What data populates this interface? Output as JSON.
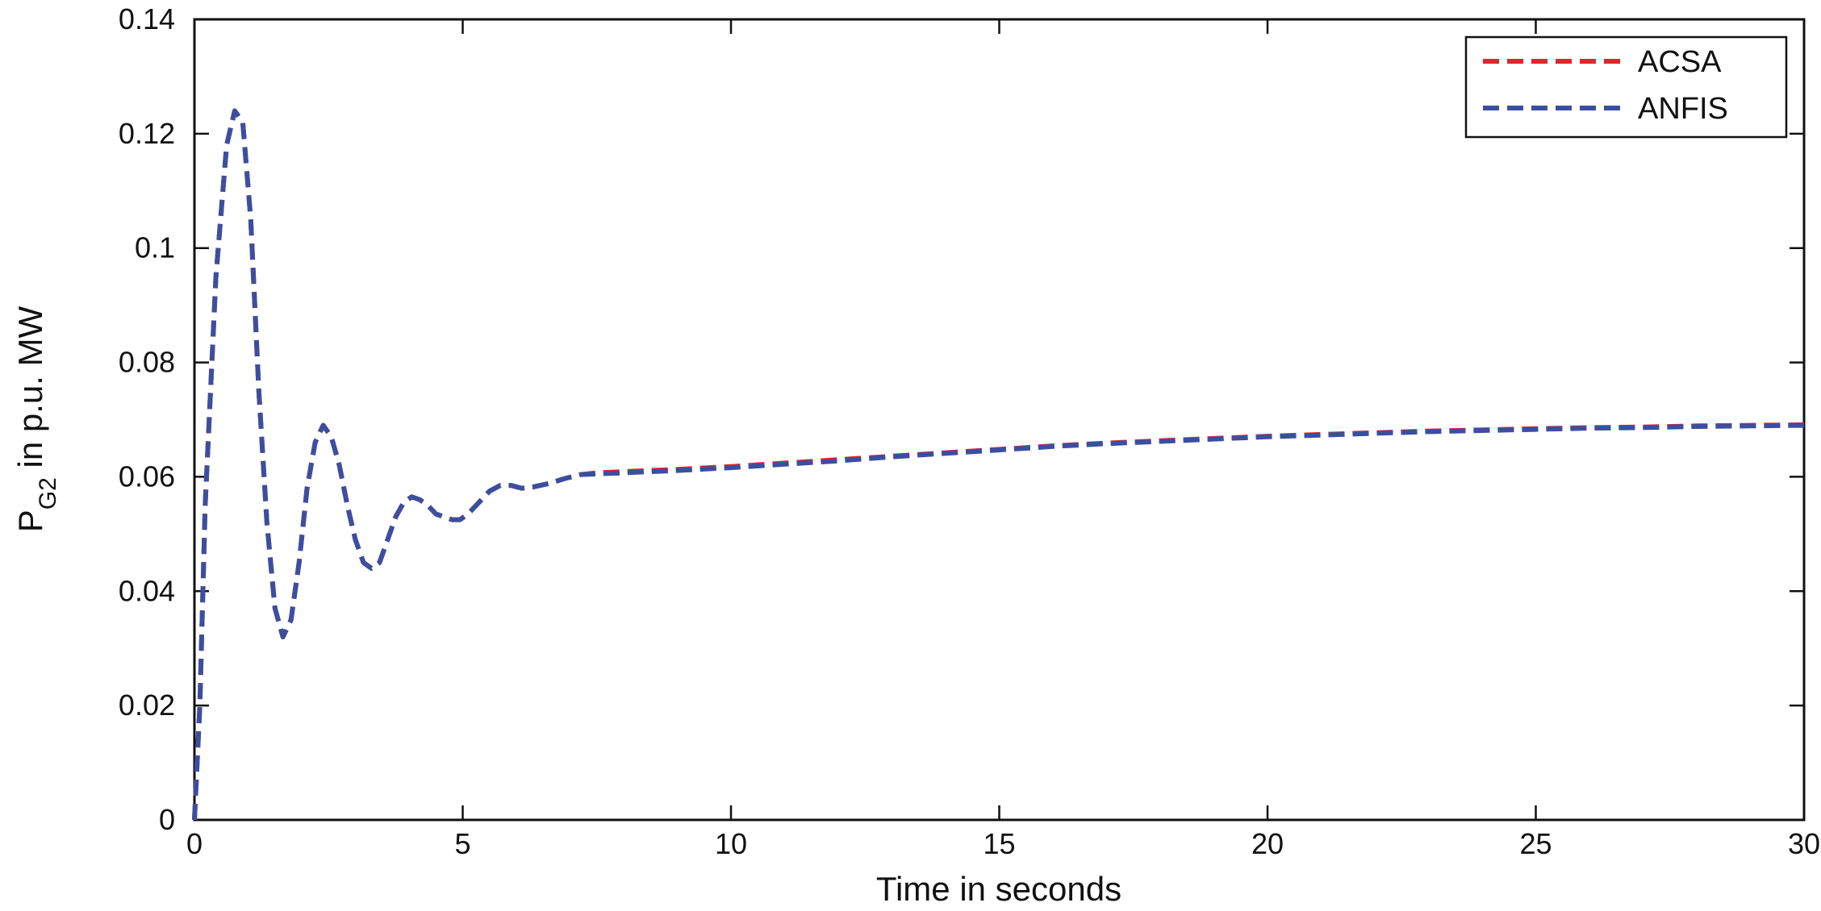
{
  "chart_data": {
    "type": "line",
    "title": "",
    "xlabel": "Time in seconds",
    "ylabel": {
      "main": "P",
      "sub": "G2",
      "rest": " in p.u. MW"
    },
    "xlim": [
      0,
      30
    ],
    "ylim": [
      0,
      0.14
    ],
    "x_ticks": [
      0,
      5,
      10,
      15,
      20,
      25,
      30
    ],
    "x_tick_labels": [
      "0",
      "5",
      "10",
      "15",
      "20",
      "25",
      "30"
    ],
    "y_ticks": [
      0,
      0.02,
      0.04,
      0.06,
      0.08,
      0.1,
      0.12,
      0.14
    ],
    "y_tick_labels": [
      "0",
      "0.02",
      "0.04",
      "0.06",
      "0.08",
      "0.1",
      "0.12",
      "0.14"
    ],
    "grid": false,
    "legend_position": "top-right",
    "line_style": "dashed",
    "series": [
      {
        "name": "ACSA",
        "color": "#e0262c",
        "x": [
          0,
          0.1,
          0.2,
          0.4,
          0.6,
          0.75,
          0.9,
          1.05,
          1.2,
          1.35,
          1.5,
          1.65,
          1.8,
          1.95,
          2.1,
          2.25,
          2.4,
          2.55,
          2.7,
          2.85,
          3.0,
          3.15,
          3.3,
          3.45,
          3.6,
          3.75,
          3.9,
          4.05,
          4.2,
          4.35,
          4.5,
          4.65,
          4.8,
          4.95,
          5.1,
          5.3,
          5.5,
          5.7,
          5.9,
          6.1,
          6.3,
          6.6,
          6.9,
          7.2,
          7.5,
          8,
          9,
          10,
          11,
          12,
          13,
          14,
          15,
          16,
          17,
          18,
          19,
          20,
          21,
          22,
          23,
          24,
          25,
          26,
          27,
          28,
          29,
          30
        ],
        "y": [
          0,
          0.02,
          0.055,
          0.095,
          0.118,
          0.124,
          0.122,
          0.105,
          0.075,
          0.052,
          0.037,
          0.032,
          0.035,
          0.045,
          0.058,
          0.066,
          0.069,
          0.067,
          0.062,
          0.055,
          0.049,
          0.045,
          0.044,
          0.045,
          0.049,
          0.053,
          0.0555,
          0.0565,
          0.056,
          0.055,
          0.0535,
          0.053,
          0.0525,
          0.0525,
          0.0535,
          0.0555,
          0.0575,
          0.0585,
          0.0585,
          0.058,
          0.0582,
          0.0588,
          0.0597,
          0.0604,
          0.0607,
          0.0609,
          0.0613,
          0.0618,
          0.0624,
          0.063,
          0.0636,
          0.0642,
          0.0648,
          0.0654,
          0.0659,
          0.0663,
          0.0667,
          0.0671,
          0.0674,
          0.0677,
          0.068,
          0.0682,
          0.0684,
          0.0686,
          0.0687,
          0.0689,
          0.069,
          0.0691
        ]
      },
      {
        "name": "ANFIS",
        "color": "#3b4fa0",
        "x": [
          0,
          0.1,
          0.2,
          0.4,
          0.6,
          0.75,
          0.9,
          1.05,
          1.2,
          1.35,
          1.5,
          1.65,
          1.8,
          1.95,
          2.1,
          2.25,
          2.4,
          2.55,
          2.7,
          2.85,
          3.0,
          3.15,
          3.3,
          3.45,
          3.6,
          3.75,
          3.9,
          4.05,
          4.2,
          4.35,
          4.5,
          4.65,
          4.8,
          4.95,
          5.1,
          5.3,
          5.5,
          5.7,
          5.9,
          6.1,
          6.3,
          6.6,
          6.9,
          7.2,
          7.5,
          8,
          9,
          10,
          11,
          12,
          13,
          14,
          15,
          16,
          17,
          18,
          19,
          20,
          21,
          22,
          23,
          24,
          25,
          26,
          27,
          28,
          29,
          30
        ],
        "y": [
          0,
          0.02,
          0.055,
          0.095,
          0.118,
          0.124,
          0.122,
          0.105,
          0.075,
          0.052,
          0.037,
          0.032,
          0.035,
          0.045,
          0.058,
          0.066,
          0.069,
          0.067,
          0.062,
          0.055,
          0.049,
          0.045,
          0.044,
          0.045,
          0.049,
          0.053,
          0.0555,
          0.0565,
          0.056,
          0.055,
          0.0535,
          0.053,
          0.0525,
          0.0525,
          0.0535,
          0.0555,
          0.0575,
          0.0585,
          0.0585,
          0.058,
          0.0582,
          0.0588,
          0.0597,
          0.0604,
          0.0605,
          0.0607,
          0.0611,
          0.0616,
          0.0622,
          0.0628,
          0.0635,
          0.0641,
          0.0647,
          0.0653,
          0.0658,
          0.0662,
          0.0666,
          0.067,
          0.0673,
          0.0676,
          0.0679,
          0.0681,
          0.0683,
          0.0685,
          0.0686,
          0.0688,
          0.0689,
          0.069
        ]
      }
    ]
  }
}
